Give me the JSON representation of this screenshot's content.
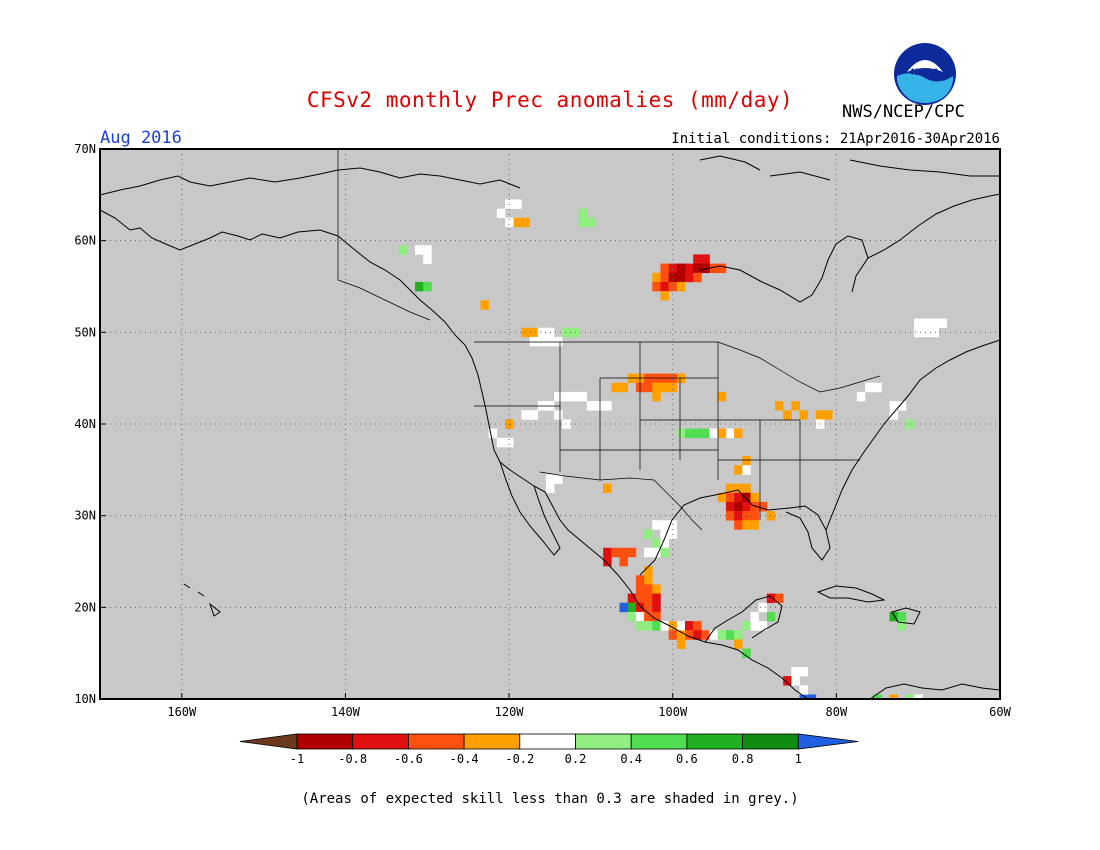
{
  "title": "CFSv2 monthly Prec anomalies (mm/day)",
  "agency": "NWS/NCEP/CPC",
  "logo_text": "NOAA",
  "month_label": "Aug 2016",
  "initial_conditions": "Initial conditions: 21Apr2016-30Apr2016",
  "footnote": "(Areas of expected skill less than 0.3 are shaded in grey.)",
  "map": {
    "lon_range": [
      -170,
      -60
    ],
    "lat_range": [
      10,
      70
    ],
    "lat_ticks": [
      {
        "value": 70,
        "label": "70N"
      },
      {
        "value": 60,
        "label": "60N"
      },
      {
        "value": 50,
        "label": "50N"
      },
      {
        "value": 40,
        "label": "40N"
      },
      {
        "value": 30,
        "label": "30N"
      },
      {
        "value": 20,
        "label": "20N"
      },
      {
        "value": 10,
        "label": "10N"
      }
    ],
    "lon_ticks": [
      {
        "value": -160,
        "label": "160W"
      },
      {
        "value": -140,
        "label": "140W"
      },
      {
        "value": -120,
        "label": "120W"
      },
      {
        "value": -100,
        "label": "100W"
      },
      {
        "value": -80,
        "label": "80W"
      },
      {
        "value": -60,
        "label": "60W"
      }
    ],
    "background_color": "#c8c8c8"
  },
  "colorbar": {
    "labels": [
      "-1",
      "-0.8",
      "-0.6",
      "-0.4",
      "-0.2",
      "0.2",
      "0.4",
      "0.6",
      "0.8",
      "1"
    ],
    "colors": [
      "#6b3a1e",
      "#b00000",
      "#e01010",
      "#ff5010",
      "#ffa000",
      "#ffffff",
      "#90ee80",
      "#50dd50",
      "#20b020",
      "#108c10",
      "#2060e0"
    ]
  },
  "anomaly_cells": [
    {
      "lon": -120,
      "lat": 64,
      "v": 0.0
    },
    {
      "lon": -119,
      "lat": 64,
      "v": 0.0
    },
    {
      "lon": -121,
      "lat": 63,
      "v": 0.0
    },
    {
      "lon": -119,
      "lat": 62,
      "v": -0.3
    },
    {
      "lon": -118,
      "lat": 62,
      "v": -0.3
    },
    {
      "lon": -120,
      "lat": 62,
      "v": 0.0
    },
    {
      "lon": -111,
      "lat": 62,
      "v": 0.3
    },
    {
      "lon": -110,
      "lat": 62,
      "v": 0.3
    },
    {
      "lon": -111,
      "lat": 63,
      "v": 0.3
    },
    {
      "lon": -133,
      "lat": 59,
      "v": 0.3
    },
    {
      "lon": -131,
      "lat": 59,
      "v": 0.0
    },
    {
      "lon": -130,
      "lat": 59,
      "v": 0.0
    },
    {
      "lon": -130,
      "lat": 58,
      "v": 0.0
    },
    {
      "lon": -131,
      "lat": 55,
      "v": 0.7
    },
    {
      "lon": -130,
      "lat": 55,
      "v": 0.5
    },
    {
      "lon": -97,
      "lat": 58,
      "v": -0.7
    },
    {
      "lon": -96,
      "lat": 58,
      "v": -0.7
    },
    {
      "lon": -95,
      "lat": 57,
      "v": -0.5
    },
    {
      "lon": -94,
      "lat": 57,
      "v": -0.5
    },
    {
      "lon": -98,
      "lat": 57,
      "v": -0.7
    },
    {
      "lon": -97,
      "lat": 57,
      "v": -0.9
    },
    {
      "lon": -96,
      "lat": 57,
      "v": -0.9
    },
    {
      "lon": -101,
      "lat": 57,
      "v": -0.5
    },
    {
      "lon": -100,
      "lat": 57,
      "v": -0.7
    },
    {
      "lon": -99,
      "lat": 57,
      "v": -0.9
    },
    {
      "lon": -102,
      "lat": 56,
      "v": -0.3
    },
    {
      "lon": -101,
      "lat": 56,
      "v": -0.5
    },
    {
      "lon": -100,
      "lat": 56,
      "v": -0.9
    },
    {
      "lon": -99,
      "lat": 56,
      "v": -0.9
    },
    {
      "lon": -98,
      "lat": 56,
      "v": -0.7
    },
    {
      "lon": -97,
      "lat": 56,
      "v": -0.5
    },
    {
      "lon": -102,
      "lat": 55,
      "v": -0.5
    },
    {
      "lon": -101,
      "lat": 55,
      "v": -0.7
    },
    {
      "lon": -100,
      "lat": 55,
      "v": -0.5
    },
    {
      "lon": -99,
      "lat": 55,
      "v": -0.3
    },
    {
      "lon": -101,
      "lat": 54,
      "v": -0.3
    },
    {
      "lon": -123,
      "lat": 53,
      "v": -0.3
    },
    {
      "lon": -118,
      "lat": 50,
      "v": -0.3
    },
    {
      "lon": -117,
      "lat": 50,
      "v": -0.3
    },
    {
      "lon": -116,
      "lat": 50,
      "v": 0.0
    },
    {
      "lon": -115,
      "lat": 50,
      "v": 0.0
    },
    {
      "lon": -113,
      "lat": 50,
      "v": 0.3
    },
    {
      "lon": -112,
      "lat": 50,
      "v": 0.3
    },
    {
      "lon": -117,
      "lat": 49,
      "v": 0.0
    },
    {
      "lon": -116,
      "lat": 49,
      "v": 0.0
    },
    {
      "lon": -115,
      "lat": 49,
      "v": 0.0
    },
    {
      "lon": -114,
      "lat": 49,
      "v": 0.0
    },
    {
      "lon": -105,
      "lat": 45,
      "v": -0.3
    },
    {
      "lon": -104,
      "lat": 45,
      "v": -0.3
    },
    {
      "lon": -103,
      "lat": 45,
      "v": -0.5
    },
    {
      "lon": -102,
      "lat": 45,
      "v": -0.5
    },
    {
      "lon": -101,
      "lat": 45,
      "v": -0.5
    },
    {
      "lon": -100,
      "lat": 45,
      "v": -0.5
    },
    {
      "lon": -99,
      "lat": 45,
      "v": -0.3
    },
    {
      "lon": -104,
      "lat": 44,
      "v": -0.5
    },
    {
      "lon": -103,
      "lat": 44,
      "v": -0.5
    },
    {
      "lon": -102,
      "lat": 44,
      "v": -0.3
    },
    {
      "lon": -101,
      "lat": 44,
      "v": -0.3
    },
    {
      "lon": -100,
      "lat": 44,
      "v": -0.3
    },
    {
      "lon": -107,
      "lat": 44,
      "v": -0.3
    },
    {
      "lon": -106,
      "lat": 44,
      "v": -0.3
    },
    {
      "lon": -102,
      "lat": 43,
      "v": -0.3
    },
    {
      "lon": -114,
      "lat": 43,
      "v": 0.0
    },
    {
      "lon": -113,
      "lat": 43,
      "v": 0.0
    },
    {
      "lon": -112,
      "lat": 43,
      "v": 0.0
    },
    {
      "lon": -111,
      "lat": 43,
      "v": 0.0
    },
    {
      "lon": -110,
      "lat": 42,
      "v": 0.0
    },
    {
      "lon": -109,
      "lat": 42,
      "v": 0.0
    },
    {
      "lon": -108,
      "lat": 42,
      "v": 0.0
    },
    {
      "lon": -116,
      "lat": 42,
      "v": 0.0
    },
    {
      "lon": -115,
      "lat": 42,
      "v": 0.0
    },
    {
      "lon": -118,
      "lat": 41,
      "v": 0.0
    },
    {
      "lon": -117,
      "lat": 41,
      "v": 0.0
    },
    {
      "lon": -113,
      "lat": 40,
      "v": 0.0
    },
    {
      "lon": -114,
      "lat": 41,
      "v": 0.0
    },
    {
      "lon": -120,
      "lat": 40,
      "v": -0.3
    },
    {
      "lon": -122,
      "lat": 39,
      "v": 0.0
    },
    {
      "lon": -121,
      "lat": 38,
      "v": 0.0
    },
    {
      "lon": -120,
      "lat": 38,
      "v": 0.0
    },
    {
      "lon": -115,
      "lat": 34,
      "v": 0.0
    },
    {
      "lon": -114,
      "lat": 34,
      "v": 0.0
    },
    {
      "lon": -115,
      "lat": 33,
      "v": 0.0
    },
    {
      "lon": -94,
      "lat": 43,
      "v": -0.3
    },
    {
      "lon": -87,
      "lat": 42,
      "v": -0.3
    },
    {
      "lon": -85,
      "lat": 42,
      "v": -0.3
    },
    {
      "lon": -84,
      "lat": 41,
      "v": -0.3
    },
    {
      "lon": -86,
      "lat": 41,
      "v": -0.3
    },
    {
      "lon": -82,
      "lat": 41,
      "v": -0.3
    },
    {
      "lon": -81,
      "lat": 41,
      "v": -0.3
    },
    {
      "lon": -82,
      "lat": 40,
      "v": 0.0
    },
    {
      "lon": -99,
      "lat": 39,
      "v": 0.3
    },
    {
      "lon": -98,
      "lat": 39,
      "v": 0.5
    },
    {
      "lon": -97,
      "lat": 39,
      "v": 0.5
    },
    {
      "lon": -96,
      "lat": 39,
      "v": 0.5
    },
    {
      "lon": -95,
      "lat": 39,
      "v": 0.0
    },
    {
      "lon": -93,
      "lat": 39,
      "v": 0.0
    },
    {
      "lon": -94,
      "lat": 39,
      "v": -0.3
    },
    {
      "lon": -92,
      "lat": 39,
      "v": -0.3
    },
    {
      "lon": -91,
      "lat": 36,
      "v": -0.3
    },
    {
      "lon": -92,
      "lat": 35,
      "v": -0.3
    },
    {
      "lon": -91,
      "lat": 35,
      "v": 0.0
    },
    {
      "lon": -93,
      "lat": 33,
      "v": -0.3
    },
    {
      "lon": -92,
      "lat": 33,
      "v": -0.3
    },
    {
      "lon": -91,
      "lat": 33,
      "v": -0.3
    },
    {
      "lon": -94,
      "lat": 32,
      "v": -0.3
    },
    {
      "lon": -93,
      "lat": 32,
      "v": -0.5
    },
    {
      "lon": -92,
      "lat": 32,
      "v": -0.7
    },
    {
      "lon": -91,
      "lat": 32,
      "v": -0.9
    },
    {
      "lon": -90,
      "lat": 32,
      "v": -0.3
    },
    {
      "lon": -93,
      "lat": 31,
      "v": -0.7
    },
    {
      "lon": -92,
      "lat": 31,
      "v": -0.9
    },
    {
      "lon": -91,
      "lat": 31,
      "v": -0.7
    },
    {
      "lon": -90,
      "lat": 31,
      "v": -0.5
    },
    {
      "lon": -89,
      "lat": 31,
      "v": -0.5
    },
    {
      "lon": -93,
      "lat": 30,
      "v": -0.5
    },
    {
      "lon": -92,
      "lat": 30,
      "v": -0.7
    },
    {
      "lon": -91,
      "lat": 30,
      "v": -0.5
    },
    {
      "lon": -90,
      "lat": 30,
      "v": -0.5
    },
    {
      "lon": -88,
      "lat": 30,
      "v": -0.3
    },
    {
      "lon": -92,
      "lat": 29,
      "v": -0.5
    },
    {
      "lon": -91,
      "lat": 29,
      "v": -0.3
    },
    {
      "lon": -90,
      "lat": 29,
      "v": -0.3
    },
    {
      "lon": -108,
      "lat": 33,
      "v": -0.3
    },
    {
      "lon": -102,
      "lat": 29,
      "v": 0.0
    },
    {
      "lon": -101,
      "lat": 29,
      "v": 0.0
    },
    {
      "lon": -100,
      "lat": 29,
      "v": 0.0
    },
    {
      "lon": -101,
      "lat": 28,
      "v": 0.0
    },
    {
      "lon": -100,
      "lat": 28,
      "v": 0.0
    },
    {
      "lon": -103,
      "lat": 28,
      "v": 0.3
    },
    {
      "lon": -102,
      "lat": 27,
      "v": 0.3
    },
    {
      "lon": -101,
      "lat": 27,
      "v": 0.0
    },
    {
      "lon": -103,
      "lat": 26,
      "v": 0.0
    },
    {
      "lon": -102,
      "lat": 26,
      "v": 0.0
    },
    {
      "lon": -101,
      "lat": 26,
      "v": 0.3
    },
    {
      "lon": -108,
      "lat": 26,
      "v": -0.7
    },
    {
      "lon": -107,
      "lat": 26,
      "v": -0.5
    },
    {
      "lon": -106,
      "lat": 26,
      "v": -0.5
    },
    {
      "lon": -105,
      "lat": 26,
      "v": -0.5
    },
    {
      "lon": -108,
      "lat": 25,
      "v": -0.7
    },
    {
      "lon": -106,
      "lat": 25,
      "v": -0.5
    },
    {
      "lon": -103,
      "lat": 24,
      "v": -0.3
    },
    {
      "lon": -104,
      "lat": 23,
      "v": -0.5
    },
    {
      "lon": -103,
      "lat": 23,
      "v": -0.3
    },
    {
      "lon": -104,
      "lat": 22,
      "v": -0.5
    },
    {
      "lon": -103,
      "lat": 22,
      "v": -0.5
    },
    {
      "lon": -102,
      "lat": 22,
      "v": -0.3
    },
    {
      "lon": -105,
      "lat": 21,
      "v": -0.7
    },
    {
      "lon": -104,
      "lat": 21,
      "v": -0.5
    },
    {
      "lon": -103,
      "lat": 21,
      "v": -0.5
    },
    {
      "lon": -102,
      "lat": 21,
      "v": -0.7
    },
    {
      "lon": -105,
      "lat": 20,
      "v": 0.7
    },
    {
      "lon": -104,
      "lat": 20,
      "v": -0.7
    },
    {
      "lon": -103,
      "lat": 20,
      "v": -0.5
    },
    {
      "lon": -102,
      "lat": 20,
      "v": -0.7
    },
    {
      "lon": -106,
      "lat": 20,
      "v": 1.1
    },
    {
      "lon": -105,
      "lat": 19,
      "v": 0.3
    },
    {
      "lon": -104,
      "lat": 19,
      "v": 0.0
    },
    {
      "lon": -103,
      "lat": 19,
      "v": -0.5
    },
    {
      "lon": -102,
      "lat": 19,
      "v": -0.5
    },
    {
      "lon": -104,
      "lat": 18,
      "v": 0.3
    },
    {
      "lon": -103,
      "lat": 18,
      "v": 0.3
    },
    {
      "lon": -102,
      "lat": 18,
      "v": 0.5
    },
    {
      "lon": -101,
      "lat": 18,
      "v": 0.0
    },
    {
      "lon": -100,
      "lat": 18,
      "v": -0.3
    },
    {
      "lon": -99,
      "lat": 18,
      "v": 0.0
    },
    {
      "lon": -98,
      "lat": 18,
      "v": -0.7
    },
    {
      "lon": -97,
      "lat": 18,
      "v": -0.5
    },
    {
      "lon": -100,
      "lat": 17,
      "v": -0.5
    },
    {
      "lon": -99,
      "lat": 17,
      "v": -0.3
    },
    {
      "lon": -98,
      "lat": 17,
      "v": -0.5
    },
    {
      "lon": -97,
      "lat": 17,
      "v": -0.7
    },
    {
      "lon": -96,
      "lat": 17,
      "v": -0.5
    },
    {
      "lon": -95,
      "lat": 17,
      "v": 0.0
    },
    {
      "lon": -94,
      "lat": 17,
      "v": 0.3
    },
    {
      "lon": -93,
      "lat": 17,
      "v": 0.5
    },
    {
      "lon": -92,
      "lat": 17,
      "v": 0.3
    },
    {
      "lon": -91,
      "lat": 18,
      "v": 0.3
    },
    {
      "lon": -90,
      "lat": 18,
      "v": 0.0
    },
    {
      "lon": -90,
      "lat": 19,
      "v": 0.0
    },
    {
      "lon": -89,
      "lat": 20,
      "v": 0.0
    },
    {
      "lon": -88,
      "lat": 21,
      "v": -0.7
    },
    {
      "lon": -87,
      "lat": 21,
      "v": -0.5
    },
    {
      "lon": -88,
      "lat": 19,
      "v": 0.5
    },
    {
      "lon": -89,
      "lat": 18,
      "v": 0.0
    },
    {
      "lon": -99,
      "lat": 16,
      "v": -0.3
    },
    {
      "lon": -92,
      "lat": 16,
      "v": -0.3
    },
    {
      "lon": -91,
      "lat": 15,
      "v": 0.5
    },
    {
      "lon": -85,
      "lat": 13,
      "v": 0.0
    },
    {
      "lon": -84,
      "lat": 13,
      "v": 0.0
    },
    {
      "lon": -86,
      "lat": 12,
      "v": -0.7
    },
    {
      "lon": -85,
      "lat": 12,
      "v": 0.0
    },
    {
      "lon": -84,
      "lat": 10,
      "v": 1.1
    },
    {
      "lon": -83,
      "lat": 10,
      "v": 1.1
    },
    {
      "lon": -84,
      "lat": 11,
      "v": 0.0
    },
    {
      "lon": -73,
      "lat": 19,
      "v": 0.7
    },
    {
      "lon": -72,
      "lat": 19,
      "v": 0.5
    },
    {
      "lon": -72,
      "lat": 18,
      "v": 0.3
    },
    {
      "lon": -75,
      "lat": 10,
      "v": 0.5
    },
    {
      "lon": -73,
      "lat": 10,
      "v": -0.3
    },
    {
      "lon": -71,
      "lat": 10,
      "v": 0.3
    },
    {
      "lon": -70,
      "lat": 10,
      "v": 0.0
    },
    {
      "lon": -70,
      "lat": 51,
      "v": 0.0
    },
    {
      "lon": -69,
      "lat": 51,
      "v": 0.0
    },
    {
      "lon": -68,
      "lat": 51,
      "v": 0.0
    },
    {
      "lon": -67,
      "lat": 51,
      "v": 0.0
    },
    {
      "lon": -70,
      "lat": 50,
      "v": 0.0
    },
    {
      "lon": -69,
      "lat": 50,
      "v": 0.0
    },
    {
      "lon": -68,
      "lat": 50,
      "v": 0.0
    },
    {
      "lon": -76,
      "lat": 44,
      "v": 0.0
    },
    {
      "lon": -75,
      "lat": 44,
      "v": 0.0
    },
    {
      "lon": -77,
      "lat": 43,
      "v": 0.0
    },
    {
      "lon": -73,
      "lat": 42,
      "v": 0.0
    },
    {
      "lon": -72,
      "lat": 42,
      "v": 0.0
    },
    {
      "lon": -73,
      "lat": 41,
      "v": 0.0
    },
    {
      "lon": -71,
      "lat": 40,
      "v": 0.3
    }
  ]
}
